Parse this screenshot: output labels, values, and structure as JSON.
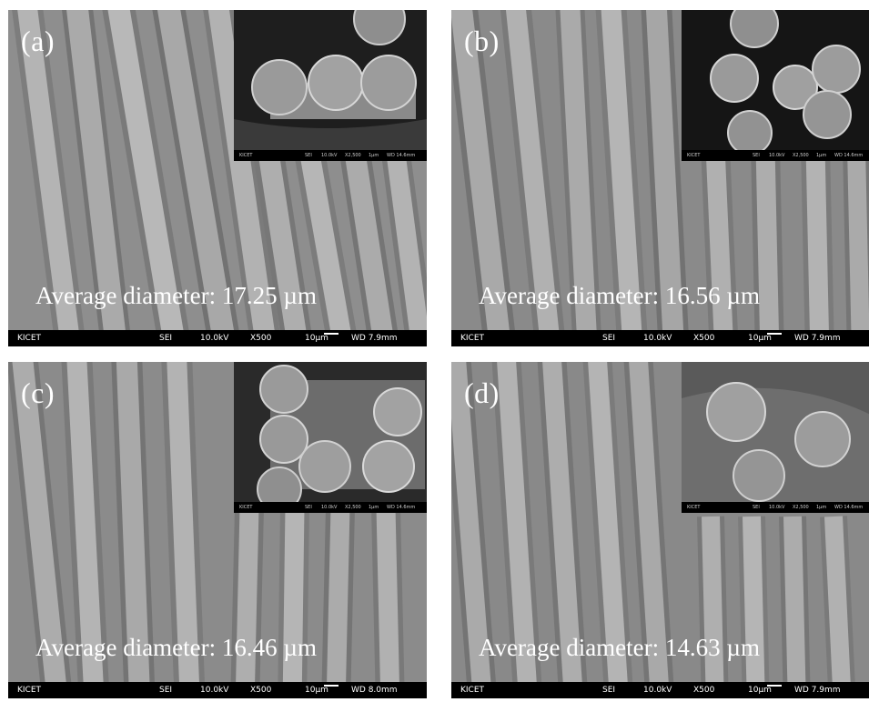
{
  "panels": [
    {
      "letter": "(a)",
      "caption": "Average diameter: 17.25 µm",
      "bar": {
        "label": "KICET",
        "detector": "SEI",
        "voltage": "10.0kV",
        "magnification": "X500",
        "scale": "10µm",
        "wd": "WD 7.9mm"
      }
    },
    {
      "letter": "(b)",
      "caption": "Average diameter: 16.56 µm",
      "bar": {
        "label": "KICET",
        "detector": "SEI",
        "voltage": "10.0kV",
        "magnification": "X500",
        "scale": "10µm",
        "wd": "WD 7.9mm"
      }
    },
    {
      "letter": "(c)",
      "caption": "Average diameter: 16.46 µm",
      "bar": {
        "label": "KICET",
        "detector": "SEI",
        "voltage": "10.0kV",
        "magnification": "X500",
        "scale": "10µm",
        "wd": "WD 8.0mm"
      }
    },
    {
      "letter": "(d)",
      "caption": "Average diameter: 14.63 µm",
      "bar": {
        "label": "KICET",
        "detector": "SEI",
        "voltage": "10.0kV",
        "magnification": "X500",
        "scale": "10µm",
        "wd": "WD 7.9mm"
      }
    }
  ]
}
